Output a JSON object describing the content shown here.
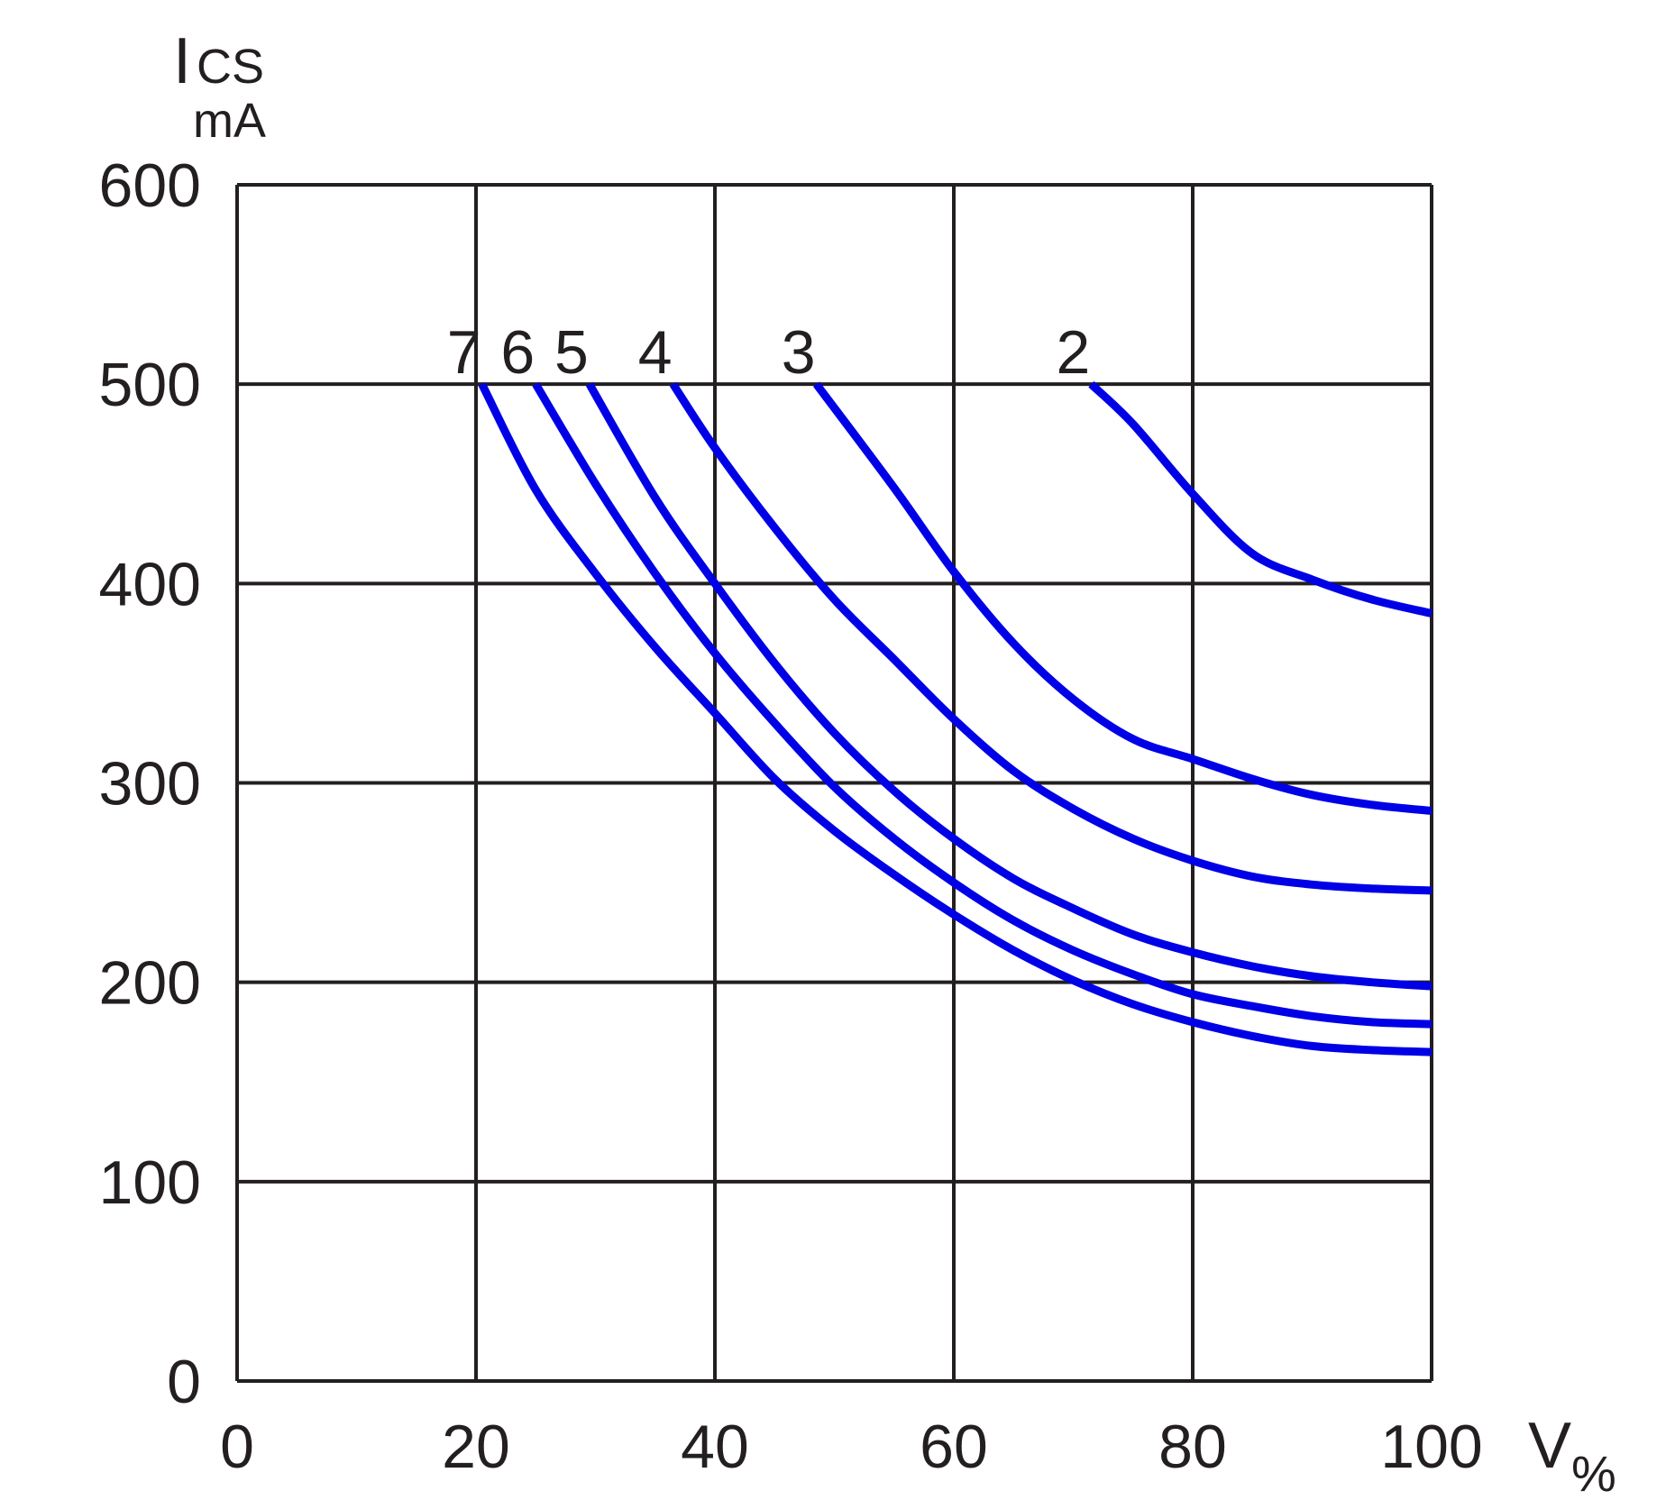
{
  "chart_data": {
    "type": "line",
    "ylabel": {
      "main": "I",
      "subscript": "CS",
      "unit": "mA"
    },
    "xlabel": {
      "main": "V",
      "subscript": "%"
    },
    "xlim": [
      0,
      100
    ],
    "ylim": [
      0,
      600
    ],
    "xticks": [
      "0",
      "20",
      "40",
      "60",
      "80",
      "100"
    ],
    "yticks": [
      "0",
      "100",
      "200",
      "300",
      "400",
      "500",
      "600"
    ],
    "grid": true,
    "series_color": "#0000e6",
    "series": [
      {
        "name": "2",
        "x": [
          71.5,
          75,
          80,
          85,
          90,
          95,
          100
        ],
        "y": [
          500,
          480,
          445,
          415,
          402,
          392,
          385
        ]
      },
      {
        "name": "3",
        "x": [
          48.5,
          55,
          60,
          65,
          70,
          75,
          80,
          85,
          90,
          95,
          100
        ],
        "y": [
          500,
          448,
          406,
          370,
          342,
          322,
          312,
          302,
          294,
          289,
          286
        ]
      },
      {
        "name": "4",
        "x": [
          36.5,
          40,
          45,
          50,
          55,
          60,
          65,
          70,
          75,
          80,
          85,
          90,
          95,
          100
        ],
        "y": [
          500,
          468,
          428,
          392,
          362,
          332,
          306,
          287,
          272,
          261,
          253,
          249,
          247,
          246
        ]
      },
      {
        "name": "5",
        "x": [
          29.5,
          35,
          40,
          45,
          50,
          55,
          60,
          65,
          70,
          75,
          80,
          85,
          90,
          95,
          100
        ],
        "y": [
          500,
          443,
          400,
          360,
          325,
          296,
          272,
          252,
          237,
          224,
          215,
          208,
          203,
          200,
          198
        ]
      },
      {
        "name": "6",
        "x": [
          25,
          30,
          35,
          40,
          45,
          50,
          55,
          60,
          65,
          70,
          75,
          80,
          85,
          90,
          95,
          100
        ],
        "y": [
          500,
          450,
          405,
          365,
          330,
          298,
          272,
          250,
          231,
          216,
          204,
          194,
          188,
          183,
          180,
          179
        ]
      },
      {
        "name": "7",
        "x": [
          20.5,
          25,
          30,
          35,
          40,
          45,
          50,
          55,
          60,
          65,
          70,
          75,
          80,
          85,
          90,
          95,
          100
        ],
        "y": [
          500,
          447,
          405,
          368,
          335,
          302,
          276,
          254,
          234,
          216,
          201,
          189,
          180,
          173,
          168,
          166,
          165
        ]
      }
    ]
  }
}
